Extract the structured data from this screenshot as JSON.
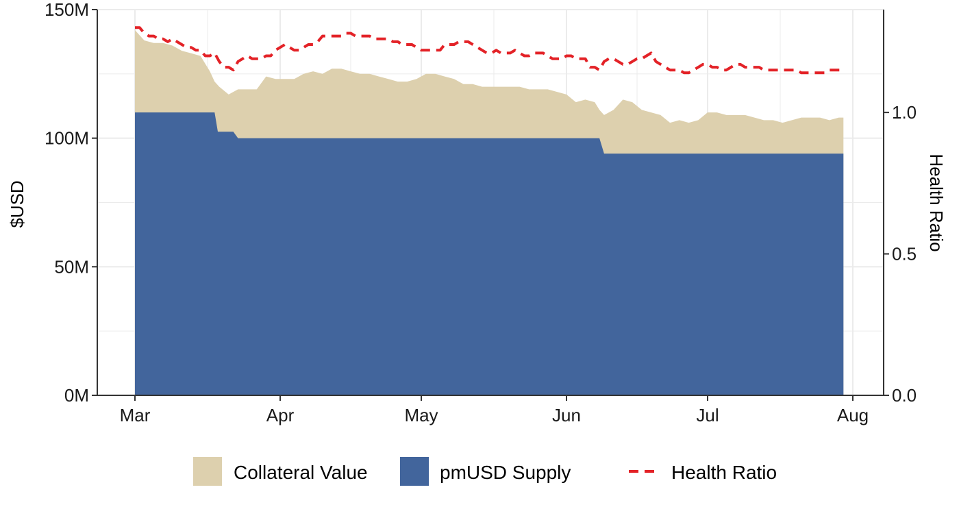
{
  "chart_data": {
    "type": "area",
    "title": "",
    "x_axis": {
      "ticks": [
        "Mar",
        "Apr",
        "May",
        "Jun",
        "Jul",
        "Aug"
      ],
      "range": [
        "Mar 1",
        "Aug 1"
      ]
    },
    "y_left": {
      "label": "$USD",
      "ticks": [
        "0M",
        "50M",
        "100M",
        "150M"
      ],
      "tick_values": [
        0,
        50,
        100,
        150
      ],
      "ylim": [
        0,
        150
      ]
    },
    "y_right": {
      "label": "Health Ratio",
      "ticks": [
        "0.0",
        "0.5",
        "1.0"
      ],
      "tick_values": [
        0,
        0.5,
        1.0
      ],
      "ylim": [
        0,
        1.3636
      ]
    },
    "grid": true,
    "legend_position": "bottom",
    "series": [
      {
        "name": "Collateral Value",
        "kind": "area",
        "color": "#ddd0ae",
        "axis": "left",
        "x_day": [
          0,
          2,
          4,
          6,
          8,
          10,
          12,
          14,
          16,
          17,
          18,
          20,
          21,
          22,
          24,
          26,
          28,
          30,
          32,
          34,
          36,
          38,
          40,
          42,
          44,
          46,
          48,
          50,
          52,
          54,
          56,
          58,
          60,
          62,
          64,
          66,
          68,
          70,
          72,
          74,
          76,
          78,
          80,
          82,
          84,
          86,
          88,
          90,
          92,
          94,
          96,
          98,
          99,
          100,
          102,
          104,
          106,
          108,
          110,
          112,
          114,
          116,
          118,
          120,
          122,
          124,
          126,
          128,
          130,
          132,
          134,
          136,
          138,
          140,
          142,
          144,
          146,
          148,
          150,
          151
        ],
        "values": [
          142,
          138,
          137,
          137,
          136,
          134,
          133,
          132,
          126,
          122,
          120,
          117,
          118,
          119,
          119,
          119,
          124,
          123,
          123,
          123,
          125,
          126,
          125,
          127,
          127,
          126,
          125,
          125,
          124,
          123,
          122,
          122,
          123,
          125,
          125,
          124,
          123,
          121,
          121,
          120,
          120,
          120,
          120,
          120,
          119,
          119,
          119,
          118,
          117,
          114,
          115,
          114,
          111,
          109,
          111,
          115,
          114,
          111,
          110,
          109,
          106,
          107,
          106,
          107,
          110,
          110,
          109,
          109,
          109,
          108,
          107,
          107,
          106,
          107,
          108,
          108,
          108,
          107,
          108,
          108
        ]
      },
      {
        "name": "pmUSD Supply",
        "kind": "area",
        "color": "#42659c",
        "axis": "left",
        "x_day": [
          0,
          17,
          17.7,
          21,
          22,
          99,
          100,
          151
        ],
        "values": [
          110,
          110,
          102.5,
          102.5,
          100,
          100,
          94,
          94
        ]
      },
      {
        "name": "Health Ratio",
        "kind": "line",
        "style": "dashed",
        "color": "#e32227",
        "axis": "right",
        "x_day": [
          0,
          1,
          2,
          3,
          4,
          5,
          6,
          7,
          8,
          9,
          10,
          11,
          12,
          13,
          14,
          15,
          16,
          17,
          18,
          19,
          20,
          21,
          22,
          23,
          24,
          25,
          26,
          27,
          28,
          29,
          30,
          31,
          32,
          33,
          34,
          35,
          36,
          37,
          38,
          39,
          40,
          41,
          42,
          43,
          44,
          45,
          46,
          47,
          48,
          49,
          50,
          51,
          52,
          53,
          54,
          55,
          56,
          57,
          58,
          59,
          60,
          61,
          62,
          63,
          64,
          65,
          66,
          67,
          68,
          69,
          70,
          71,
          72,
          73,
          74,
          75,
          76,
          77,
          78,
          79,
          80,
          81,
          82,
          83,
          84,
          85,
          86,
          87,
          88,
          89,
          90,
          91,
          92,
          93,
          94,
          95,
          96,
          97,
          98,
          99,
          100,
          101,
          102,
          103,
          104,
          105,
          106,
          107,
          108,
          109,
          110,
          111,
          112,
          113,
          114,
          115,
          116,
          117,
          118,
          119,
          120,
          121,
          122,
          123,
          124,
          125,
          126,
          127,
          128,
          129,
          130,
          131,
          132,
          133,
          134,
          135,
          136,
          137,
          138,
          139,
          140,
          141,
          142,
          143,
          144,
          145,
          146,
          147,
          148,
          149,
          150,
          151
        ],
        "values": [
          1.3,
          1.3,
          1.28,
          1.27,
          1.27,
          1.26,
          1.26,
          1.25,
          1.26,
          1.25,
          1.24,
          1.23,
          1.23,
          1.22,
          1.22,
          1.2,
          1.2,
          1.21,
          1.18,
          1.16,
          1.16,
          1.15,
          1.18,
          1.19,
          1.2,
          1.19,
          1.19,
          1.19,
          1.2,
          1.2,
          1.22,
          1.23,
          1.24,
          1.23,
          1.22,
          1.22,
          1.23,
          1.24,
          1.24,
          1.25,
          1.27,
          1.27,
          1.27,
          1.27,
          1.27,
          1.28,
          1.28,
          1.27,
          1.27,
          1.27,
          1.27,
          1.26,
          1.26,
          1.26,
          1.26,
          1.25,
          1.25,
          1.24,
          1.24,
          1.24,
          1.23,
          1.22,
          1.22,
          1.22,
          1.22,
          1.22,
          1.24,
          1.24,
          1.24,
          1.25,
          1.25,
          1.25,
          1.24,
          1.23,
          1.22,
          1.21,
          1.21,
          1.22,
          1.21,
          1.21,
          1.21,
          1.22,
          1.21,
          1.2,
          1.2,
          1.21,
          1.21,
          1.21,
          1.2,
          1.19,
          1.19,
          1.19,
          1.2,
          1.2,
          1.19,
          1.19,
          1.19,
          1.16,
          1.16,
          1.15,
          1.18,
          1.19,
          1.19,
          1.18,
          1.17,
          1.17,
          1.18,
          1.19,
          1.19,
          1.2,
          1.21,
          1.18,
          1.17,
          1.16,
          1.15,
          1.15,
          1.15,
          1.14,
          1.14,
          1.15,
          1.16,
          1.17,
          1.17,
          1.16,
          1.16,
          1.15,
          1.15,
          1.16,
          1.17,
          1.17,
          1.16,
          1.16,
          1.16,
          1.16,
          1.15,
          1.15,
          1.15,
          1.15,
          1.15,
          1.15,
          1.15,
          1.15,
          1.14,
          1.14,
          1.14,
          1.14,
          1.14,
          1.14,
          1.15,
          1.15,
          1.15,
          1.15
        ]
      }
    ],
    "legend": [
      {
        "label": "Collateral Value",
        "symbol": "fill",
        "color": "#ddd0ae"
      },
      {
        "label": "pmUSD Supply",
        "symbol": "fill",
        "color": "#42659c"
      },
      {
        "label": "Health Ratio",
        "symbol": "dash",
        "color": "#e32227"
      }
    ],
    "colors": {
      "grid": "#ebebeb",
      "axis": "#333333"
    }
  }
}
